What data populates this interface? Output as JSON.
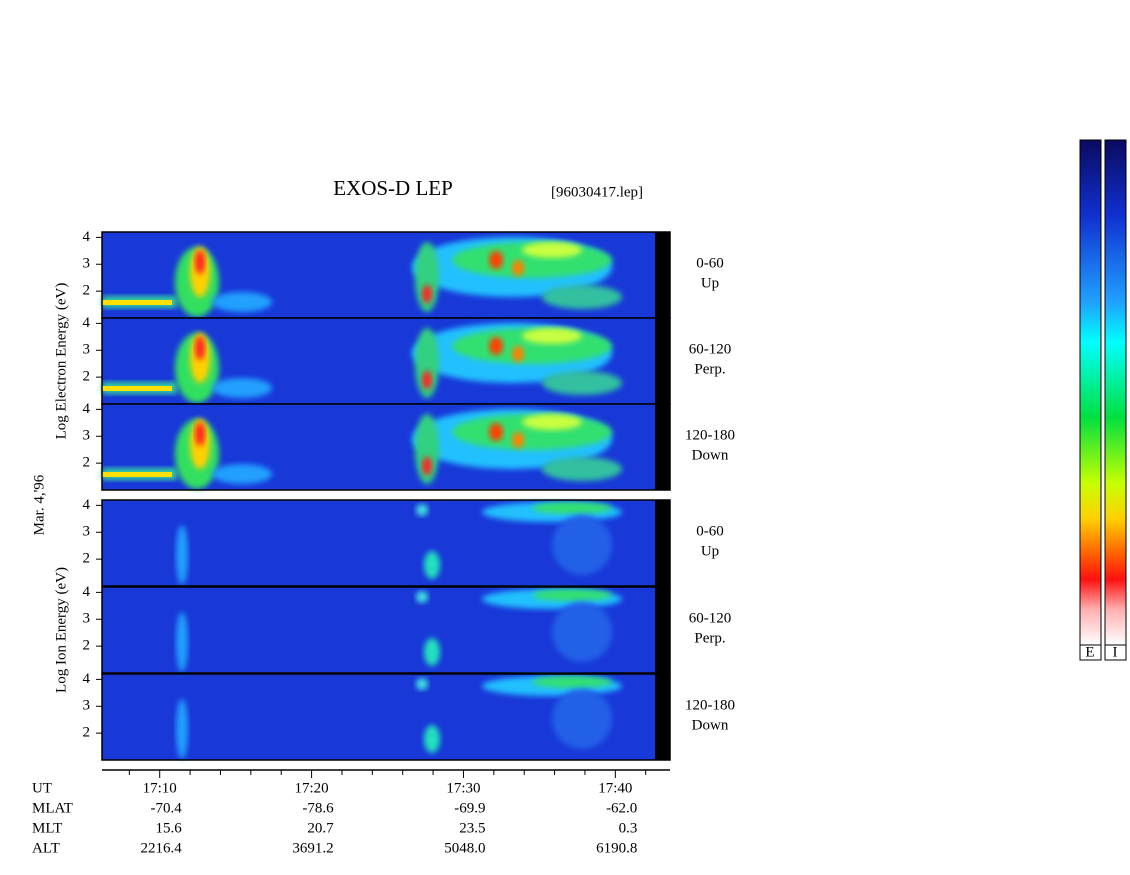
{
  "chart_data": {
    "type": "spectrogram",
    "title": "EXOS-D LEP",
    "file_label": "[96030417.lep]",
    "date_label": "Mar. 4,'96",
    "ylim": [
      1,
      4.2
    ],
    "yticks": [
      2,
      3,
      4
    ],
    "xlim": [
      1026.2,
      1063.6
    ],
    "xticks": [
      {
        "value": 1030,
        "label": "17:10"
      },
      {
        "value": 1040,
        "label": "17:20"
      },
      {
        "value": 1050,
        "label": "17:30"
      },
      {
        "value": 1060,
        "label": "17:40"
      }
    ],
    "minor_xticks": [
      1028,
      1032,
      1034,
      1036,
      1038,
      1042,
      1044,
      1046,
      1048,
      1052,
      1054,
      1056,
      1058,
      1062
    ],
    "groups": [
      {
        "label": "Log Electron Energy (eV)",
        "panels": [
          {
            "angle": "0-60",
            "direction": "Up"
          },
          {
            "angle": "60-120",
            "direction": "Perp."
          },
          {
            "angle": "120-180",
            "direction": "Down"
          }
        ]
      },
      {
        "label": "Log Ion Energy (eV)",
        "panels": [
          {
            "angle": "0-60",
            "direction": "Up"
          },
          {
            "angle": "60-120",
            "direction": "Perp."
          },
          {
            "angle": "120-180",
            "direction": "Down"
          }
        ]
      }
    ],
    "x_axis_name": "UT",
    "ephemeris": [
      {
        "name": "MLAT",
        "values": [
          "-70.4",
          "-78.6",
          "-69.9",
          "-62.0"
        ]
      },
      {
        "name": "MLT",
        "values": [
          "15.6",
          "20.7",
          "23.5",
          "0.3"
        ]
      },
      {
        "name": "ALT",
        "values": [
          "2216.4",
          "3691.2",
          "5048.0",
          "6190.8"
        ]
      }
    ],
    "colorbars": [
      "E",
      "I"
    ]
  }
}
